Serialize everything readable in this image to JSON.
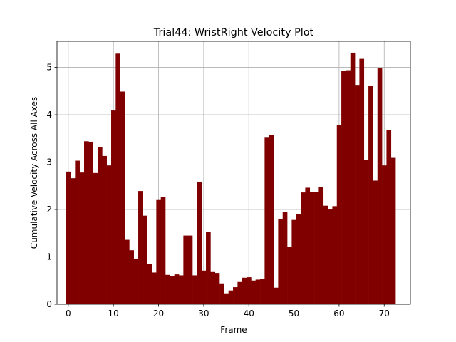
{
  "chart_data": {
    "type": "bar",
    "title": "Trial44: WristRight Velocity Plot",
    "xlabel": "Frame",
    "ylabel": "Cumulative Velocity Across All Axes",
    "xlim": [
      -2.5,
      75.8
    ],
    "ylim": [
      0,
      5.55
    ],
    "xticks": [
      0,
      10,
      20,
      30,
      40,
      50,
      60,
      70
    ],
    "yticks": [
      0,
      1,
      2,
      3,
      4,
      5
    ],
    "grid": true,
    "bar_color": "#800000",
    "x": [
      0,
      1,
      2,
      3,
      4,
      5,
      6,
      7,
      8,
      9,
      10,
      11,
      12,
      13,
      14,
      15,
      16,
      17,
      18,
      19,
      20,
      21,
      22,
      23,
      24,
      25,
      26,
      27,
      28,
      29,
      30,
      31,
      32,
      33,
      34,
      35,
      36,
      37,
      38,
      39,
      40,
      41,
      42,
      43,
      44,
      45,
      46,
      47,
      48,
      49,
      50,
      51,
      52,
      53,
      54,
      55,
      56,
      57,
      58,
      59,
      60,
      61,
      62,
      63,
      64,
      65,
      66,
      67,
      68,
      69,
      70,
      71,
      72
    ],
    "values": [
      2.8,
      2.66,
      3.03,
      2.78,
      3.44,
      3.43,
      2.77,
      3.32,
      3.13,
      2.93,
      4.09,
      5.29,
      4.49,
      1.36,
      1.14,
      0.95,
      2.39,
      1.87,
      0.85,
      0.67,
      2.2,
      2.26,
      0.62,
      0.6,
      0.63,
      0.61,
      1.45,
      1.45,
      0.61,
      2.58,
      0.71,
      1.53,
      0.68,
      0.66,
      0.44,
      0.23,
      0.29,
      0.36,
      0.47,
      0.56,
      0.57,
      0.5,
      0.52,
      0.53,
      3.53,
      3.58,
      0.35,
      1.8,
      1.95,
      1.21,
      1.78,
      1.9,
      2.36,
      2.46,
      2.37,
      2.37,
      2.47,
      2.08,
      2.0,
      2.07,
      3.79,
      4.92,
      4.94,
      5.31,
      4.63,
      5.18,
      3.05,
      4.61,
      2.61,
      4.99,
      2.93,
      3.68,
      3.09
    ]
  }
}
